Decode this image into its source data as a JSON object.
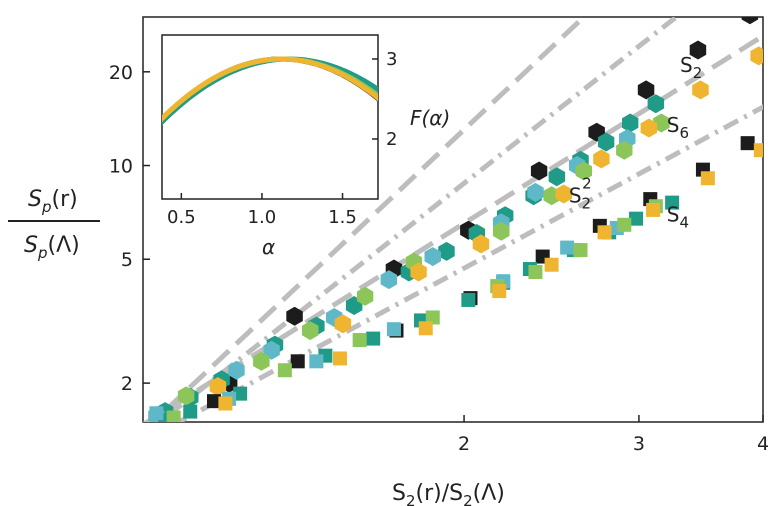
{
  "chart_data": {
    "type": "scatter",
    "xlabel": {
      "pre": "S",
      "sub1": "2",
      "mid": "(r)/S",
      "sub2": "2",
      "post": "(Λ)"
    },
    "ylabel": {
      "num": {
        "pre": "S",
        "sub": "p",
        "post": "(r)"
      },
      "den": {
        "pre": "S",
        "sub": "p",
        "post": "(Λ)"
      }
    },
    "xscale": "log",
    "yscale": "log",
    "xlim": [
      0.95,
      4.0
    ],
    "ylim": [
      1.5,
      30
    ],
    "xticks": [
      {
        "v": 2,
        "label": "2"
      },
      {
        "v": 3,
        "label": "3"
      },
      {
        "v": 4,
        "label": "4"
      }
    ],
    "yticks": [
      {
        "v": 2,
        "label": "2"
      },
      {
        "v": 5,
        "label": "5"
      },
      {
        "v": 10,
        "label": "10"
      },
      {
        "v": 20,
        "label": "20"
      }
    ],
    "colors": {
      "black": "#1c1c1c",
      "teal": "#1f9b87",
      "cyan": "#5fb8c8",
      "lime": "#8cc65a",
      "gold": "#f0b530",
      "dash": "#bdbdbd"
    },
    "reference_lines": [
      {
        "name": "S2^3",
        "style": "dashed",
        "exponent": 3,
        "amplitude": 1.63
      },
      {
        "name": "S2^2",
        "style": "dashed",
        "exponent": 2,
        "amplitude": 1.63
      },
      {
        "name": "S6 fit",
        "style": "dash-dot",
        "exponent": 2.5,
        "amplitude": 1.55
      },
      {
        "name": "S4 fit",
        "style": "dash-dot",
        "exponent": 1.72,
        "amplitude": 1.42
      }
    ],
    "annotations": [
      {
        "pre": "S",
        "sub": "2",
        "sup": "3",
        "x": 3.3,
        "y": 20
      },
      {
        "pre": "S",
        "sub": "2",
        "sup": "2",
        "x": 2.55,
        "y": 7.6
      },
      {
        "pre": "S",
        "sub": "6",
        "sup": "",
        "x": 3.2,
        "y": 12.8
      },
      {
        "pre": "S",
        "sub": "4",
        "sup": "",
        "x": 3.2,
        "y": 6.6
      }
    ],
    "series": [
      {
        "group": "S6",
        "marker": "hexagon",
        "color": "black",
        "points": [
          [
            1.16,
            2.0
          ],
          [
            1.35,
            3.28
          ],
          [
            1.7,
            4.65
          ],
          [
            2.02,
            6.2
          ],
          [
            2.38,
            9.6
          ],
          [
            2.72,
            12.8
          ],
          [
            3.05,
            17.5
          ],
          [
            3.44,
            23.5
          ],
          [
            3.88,
            30.5
          ]
        ]
      },
      {
        "group": "S6",
        "marker": "hexagon",
        "color": "teal",
        "points": [
          [
            1.0,
            1.62
          ],
          [
            1.06,
            1.8
          ],
          [
            1.14,
            2.05
          ],
          [
            1.29,
            2.65
          ],
          [
            1.42,
            3.05
          ],
          [
            1.55,
            3.55
          ],
          [
            1.76,
            4.55
          ],
          [
            1.92,
            5.3
          ],
          [
            2.06,
            6.05
          ],
          [
            2.2,
            6.9
          ],
          [
            2.35,
            8.0
          ],
          [
            2.48,
            9.2
          ],
          [
            2.62,
            10.4
          ],
          [
            2.78,
            11.9
          ],
          [
            2.94,
            13.7
          ],
          [
            3.12,
            15.8
          ]
        ]
      },
      {
        "group": "S6",
        "marker": "hexagon",
        "color": "cyan",
        "points": [
          [
            0.98,
            1.57
          ],
          [
            1.18,
            2.2
          ],
          [
            1.28,
            2.55
          ],
          [
            1.48,
            3.25
          ],
          [
            1.68,
            4.3
          ],
          [
            1.86,
            5.1
          ],
          [
            2.18,
            6.55
          ],
          [
            2.36,
            8.2
          ],
          [
            2.6,
            10.0
          ],
          [
            2.92,
            12.2
          ]
        ]
      },
      {
        "group": "S6",
        "marker": "hexagon",
        "color": "lime",
        "points": [
          [
            1.05,
            1.82
          ],
          [
            1.25,
            2.35
          ],
          [
            1.4,
            2.95
          ],
          [
            1.59,
            3.8
          ],
          [
            1.78,
            4.9
          ],
          [
            2.18,
            6.15
          ],
          [
            2.45,
            8.0
          ],
          [
            2.64,
            9.6
          ],
          [
            2.9,
            11.2
          ],
          [
            3.16,
            13.7
          ]
        ]
      },
      {
        "group": "S6",
        "marker": "hexagon",
        "color": "gold",
        "points": [
          [
            1.13,
            1.95
          ],
          [
            1.51,
            3.1
          ],
          [
            1.8,
            4.55
          ],
          [
            2.08,
            5.6
          ],
          [
            2.52,
            8.1
          ],
          [
            2.75,
            10.5
          ],
          [
            3.07,
            13.2
          ],
          [
            3.46,
            17.5
          ],
          [
            3.96,
            22.5
          ]
        ]
      },
      {
        "group": "S4",
        "marker": "square",
        "color": "black",
        "points": [
          [
            1.12,
            1.75
          ],
          [
            1.36,
            2.35
          ],
          [
            1.71,
            2.95
          ],
          [
            2.03,
            3.75
          ],
          [
            2.4,
            5.1
          ],
          [
            2.74,
            6.4
          ],
          [
            3.08,
            7.8
          ],
          [
            3.48,
            9.7
          ],
          [
            3.86,
            11.8
          ]
        ]
      },
      {
        "group": "S4",
        "marker": "square",
        "color": "teal",
        "points": [
          [
            1.0,
            1.52
          ],
          [
            1.06,
            1.62
          ],
          [
            1.19,
            1.85
          ],
          [
            1.45,
            2.45
          ],
          [
            1.62,
            2.78
          ],
          [
            1.81,
            3.18
          ],
          [
            2.02,
            3.7
          ],
          [
            2.19,
            4.2
          ],
          [
            2.33,
            4.65
          ],
          [
            2.58,
            5.35
          ],
          [
            2.8,
            6.1
          ],
          [
            2.98,
            6.75
          ],
          [
            3.24,
            7.6
          ]
        ]
      },
      {
        "group": "S4",
        "marker": "square",
        "color": "cyan",
        "points": [
          [
            0.98,
            1.6
          ],
          [
            1.16,
            1.78
          ],
          [
            1.42,
            2.35
          ],
          [
            1.7,
            2.98
          ],
          [
            2.19,
            4.25
          ],
          [
            2.54,
            5.45
          ],
          [
            2.85,
            6.3
          ]
        ]
      },
      {
        "group": "S4",
        "marker": "square",
        "color": "lime",
        "points": [
          [
            1.02,
            1.55
          ],
          [
            1.32,
            2.2
          ],
          [
            1.57,
            2.75
          ],
          [
            1.86,
            3.25
          ],
          [
            2.16,
            4.1
          ],
          [
            2.36,
            4.55
          ],
          [
            2.62,
            5.35
          ],
          [
            2.9,
            6.45
          ],
          [
            3.12,
            7.4
          ]
        ]
      },
      {
        "group": "S4",
        "marker": "square",
        "color": "gold",
        "points": [
          [
            1.15,
            1.72
          ],
          [
            1.5,
            2.4
          ],
          [
            1.83,
            3.0
          ],
          [
            2.17,
            3.95
          ],
          [
            2.45,
            4.8
          ],
          [
            2.77,
            6.1
          ],
          [
            3.1,
            7.2
          ],
          [
            3.52,
            9.1
          ],
          [
            3.98,
            11.2
          ]
        ]
      }
    ],
    "inset": {
      "xlabel": "α",
      "ylabel": "F(α)",
      "xlim": [
        0.38,
        1.72
      ],
      "ylim": [
        1.25,
        3.3
      ],
      "xticks": [
        {
          "v": 0.5,
          "label": "0.5"
        },
        {
          "v": 1.0,
          "label": "1.0"
        },
        {
          "v": 1.5,
          "label": "1.5"
        }
      ],
      "yticks": [
        {
          "v": 2,
          "label": "2"
        },
        {
          "v": 3,
          "label": "3"
        }
      ],
      "yaxis_side": "right",
      "curves": [
        {
          "color": "black",
          "peak_x": 1.12,
          "peak_y": 3.0,
          "curvature": 1.38
        },
        {
          "color": "teal",
          "peak_x": 1.17,
          "peak_y": 3.0,
          "curvature": 1.26
        },
        {
          "color": "lime",
          "peak_x": 1.13,
          "peak_y": 3.0,
          "curvature": 1.32
        },
        {
          "color": "gold",
          "peak_x": 1.12,
          "peak_y": 3.0,
          "curvature": 1.36
        }
      ]
    }
  }
}
